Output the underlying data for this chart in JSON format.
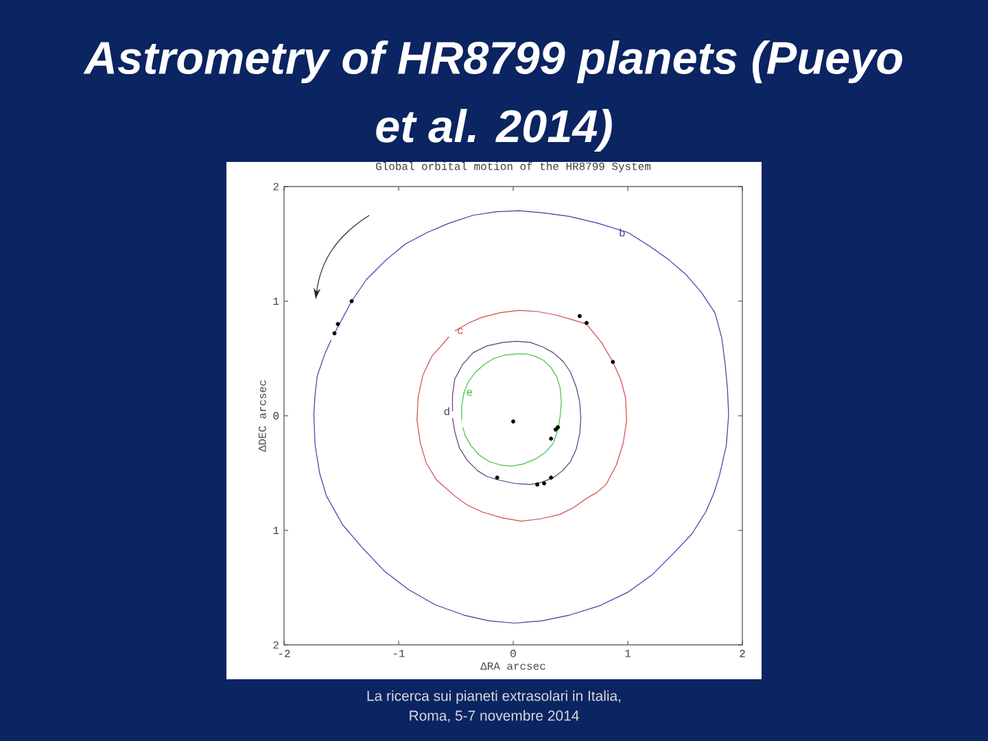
{
  "chart_data": {
    "type": "line",
    "title": "Astrometry of HR8799 planets (Pueyo et al. 2014)",
    "subtitle": "Global orbital motion of the HR8799 System",
    "xlabel": "ΔRA arcsec",
    "ylabel": "ΔDEC arcsec",
    "xlim": [
      -2,
      2
    ],
    "ylim": [
      -2,
      2
    ],
    "xticks": [
      -2,
      -1,
      0,
      1,
      2
    ],
    "yticks": [
      {
        "value": -2,
        "label": "2"
      },
      {
        "value": -1,
        "label": "1"
      },
      0,
      1,
      2
    ],
    "series": [
      {
        "color": "#3c3ca0",
        "x": [
          -1.56,
          -1.41,
          -1.28,
          -1.11,
          -0.94,
          -0.75,
          -0.56,
          -0.35,
          -0.15,
          0.05,
          0.27,
          0.49,
          0.74,
          1.0,
          1.19,
          1.36,
          1.51,
          1.64,
          1.76,
          1.82,
          1.85,
          1.87,
          1.88,
          1.86,
          1.8,
          1.75,
          1.68,
          1.56,
          1.4,
          1.21,
          1.0,
          0.75,
          0.49,
          0.25,
          0.01,
          -0.21,
          -0.43,
          -0.68,
          -0.91,
          -1.12,
          -1.31,
          -1.49,
          -1.63,
          -1.69,
          -1.73,
          -1.74,
          -1.73,
          -1.71,
          -1.64,
          -1.59
        ],
        "values": [
          0.72,
          1.0,
          1.19,
          1.36,
          1.5,
          1.6,
          1.68,
          1.75,
          1.78,
          1.79,
          1.77,
          1.74,
          1.68,
          1.6,
          1.48,
          1.36,
          1.23,
          1.08,
          0.9,
          0.68,
          0.45,
          0.23,
          0.01,
          -0.26,
          -0.52,
          -0.68,
          -0.84,
          -1.03,
          -1.2,
          -1.39,
          -1.54,
          -1.66,
          -1.74,
          -1.79,
          -1.81,
          -1.79,
          -1.74,
          -1.65,
          -1.52,
          -1.36,
          -1.16,
          -0.95,
          -0.7,
          -0.5,
          -0.25,
          0.01,
          0.18,
          0.35,
          0.55,
          0.66
        ]
      },
      {
        "color": "#d04848",
        "x": [
          -0.51,
          -0.39,
          -0.27,
          -0.11,
          0.05,
          0.21,
          0.37,
          0.51,
          0.64,
          0.77,
          0.87,
          0.94,
          0.98,
          0.99,
          0.96,
          0.9,
          0.81,
          0.73,
          0.64,
          0.53,
          0.41,
          0.24,
          0.07,
          -0.1,
          -0.27,
          -0.4,
          -0.51,
          -0.67,
          -0.76,
          -0.81,
          -0.84,
          -0.83,
          -0.79,
          -0.71,
          -0.62,
          -0.56
        ],
        "values": [
          0.74,
          0.81,
          0.86,
          0.9,
          0.92,
          0.91,
          0.88,
          0.84,
          0.8,
          0.64,
          0.47,
          0.31,
          0.16,
          -0.04,
          -0.24,
          -0.43,
          -0.6,
          -0.67,
          -0.72,
          -0.8,
          -0.86,
          -0.9,
          -0.92,
          -0.89,
          -0.84,
          -0.78,
          -0.7,
          -0.56,
          -0.41,
          -0.24,
          -0.04,
          0.16,
          0.35,
          0.52,
          0.62,
          0.69
        ]
      },
      {
        "color": "#583a78",
        "x": [
          -0.53,
          -0.53,
          -0.51,
          -0.44,
          -0.35,
          -0.23,
          -0.09,
          0.03,
          0.15,
          0.26,
          0.35,
          0.44,
          0.5,
          0.55,
          0.58,
          0.59,
          0.58,
          0.55,
          0.5,
          0.43,
          0.35,
          0.25,
          0.15,
          0.01,
          -0.13,
          -0.23,
          -0.31,
          -0.4,
          -0.47,
          -0.51,
          -0.53
        ],
        "values": [
          0.04,
          0.18,
          0.32,
          0.45,
          0.55,
          0.61,
          0.64,
          0.65,
          0.64,
          0.6,
          0.55,
          0.47,
          0.38,
          0.25,
          0.12,
          -0.02,
          -0.16,
          -0.29,
          -0.4,
          -0.48,
          -0.54,
          -0.58,
          -0.6,
          -0.59,
          -0.56,
          -0.53,
          -0.48,
          -0.39,
          -0.28,
          -0.14,
          -0.02
        ]
      },
      {
        "color": "#40c040",
        "x": [
          -0.45,
          -0.45,
          -0.43,
          -0.39,
          -0.33,
          -0.25,
          -0.17,
          -0.07,
          0.03,
          0.11,
          0.19,
          0.27,
          0.33,
          0.38,
          0.41,
          0.42,
          0.41,
          0.39,
          0.35,
          0.28,
          0.19,
          0.09,
          -0.01,
          -0.11,
          -0.21,
          -0.3,
          -0.37,
          -0.42,
          -0.44
        ],
        "values": [
          -0.04,
          0.08,
          0.2,
          0.3,
          0.38,
          0.45,
          0.5,
          0.53,
          0.54,
          0.54,
          0.52,
          0.48,
          0.42,
          0.34,
          0.24,
          0.12,
          0.0,
          -0.12,
          -0.24,
          -0.32,
          -0.38,
          -0.42,
          -0.44,
          -0.43,
          -0.4,
          -0.34,
          -0.26,
          -0.17,
          -0.1
        ]
      },
      {
        "type": "scatter",
        "marker": "circle",
        "color": "#000000",
        "x": [
          -1.41,
          -1.53,
          -1.56,
          0.58,
          0.64,
          0.87,
          -0.14,
          0.21,
          0.27,
          0.33,
          0.33,
          0.37,
          0.39,
          0.0
        ],
        "values": [
          1.0,
          0.8,
          0.72,
          0.87,
          0.81,
          0.47,
          -0.54,
          -0.6,
          -0.59,
          -0.54,
          -0.2,
          -0.12,
          -0.1,
          -0.05
        ]
      }
    ],
    "annotations": [
      {
        "text": "b",
        "x": 1.0,
        "y": 1.6
      },
      {
        "text": "c",
        "x": -0.51,
        "y": 0.74
      },
      {
        "text": "d",
        "x": -0.53,
        "y": 0.04
      },
      {
        "text": "e",
        "x": -0.43,
        "y": 0.2
      },
      "La ricerca sui pianeti extrasolari in Italia,",
      "Roma, 5-7 novembre 2014"
    ]
  }
}
